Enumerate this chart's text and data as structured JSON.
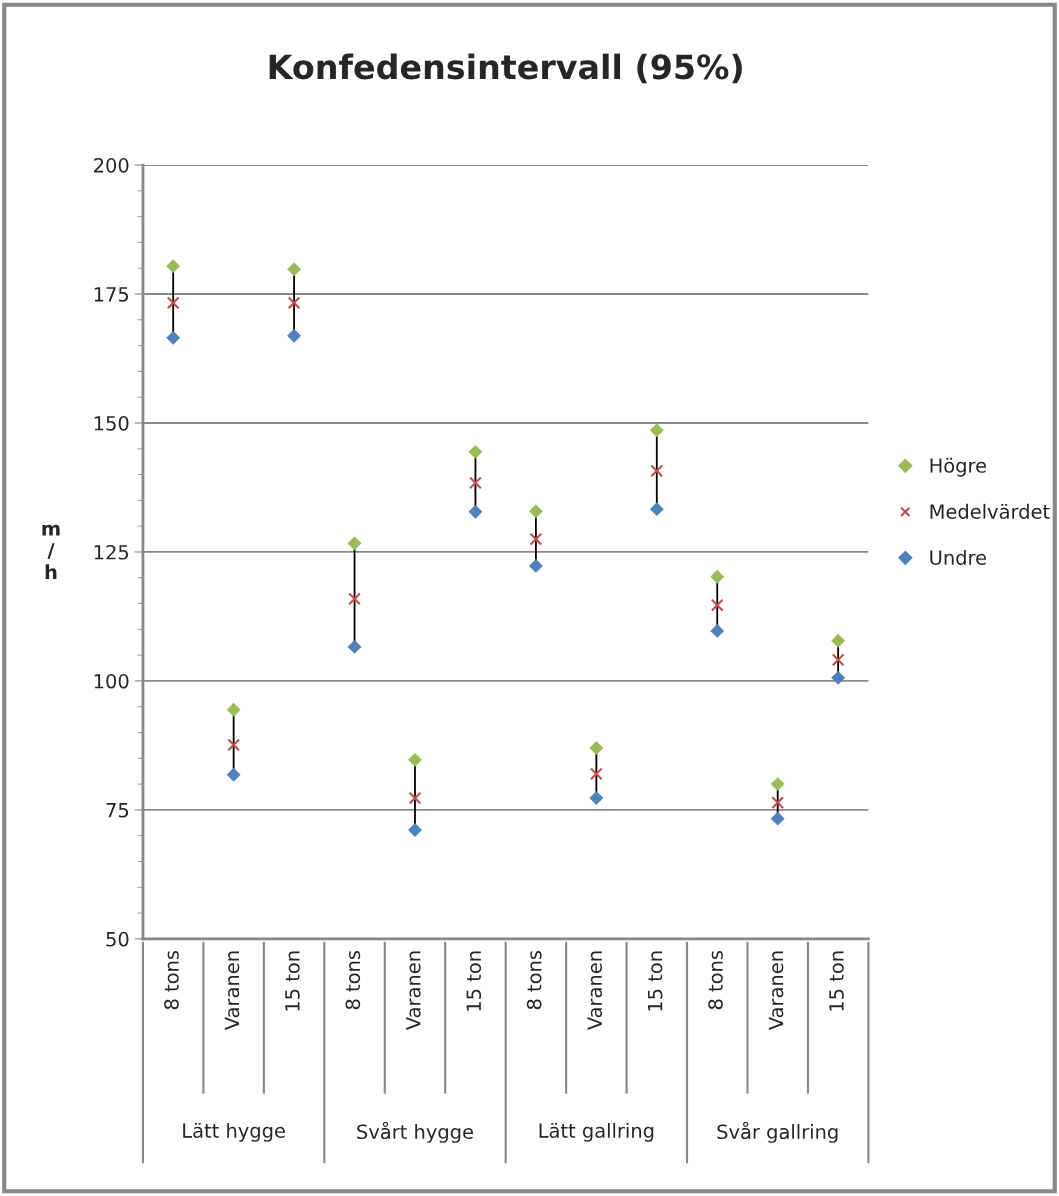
{
  "chart_data": {
    "type": "scatter",
    "title": "Konfedensintervall (95%)",
    "ylabel": "m\n/\nh",
    "categories": [
      "8 tons",
      "Varanen",
      "15 ton",
      "8 tons",
      "Varanen",
      "15 ton",
      "8 tons",
      "Varanen",
      "15 ton",
      "8 tons",
      "Varanen",
      "15 ton"
    ],
    "annotations": [
      "Lätt hygge",
      "Svårt hygge",
      "Lätt gallring",
      "Svår gallring"
    ],
    "series": [
      {
        "name": "Högre",
        "color": "#9bbb59",
        "marker": "diamond",
        "values": [
          180.4,
          94.4,
          179.8,
          126.7,
          84.7,
          144.4,
          132.9,
          87.0,
          148.6,
          120.2,
          80.0,
          107.8
        ]
      },
      {
        "name": "Medelvärdet",
        "color": "#c0504d",
        "marker": "cross",
        "values": [
          173.3,
          87.6,
          173.3,
          115.9,
          77.3,
          138.4,
          127.5,
          82.0,
          140.7,
          114.7,
          76.4,
          104.1
        ]
      },
      {
        "name": "Undre",
        "color": "#4f81bd",
        "marker": "diamond",
        "values": [
          166.5,
          81.8,
          166.9,
          106.6,
          71.1,
          132.8,
          122.3,
          77.3,
          133.3,
          109.7,
          73.3,
          100.6
        ]
      }
    ],
    "ylim": [
      50,
      200
    ],
    "yticks": [
      50,
      75,
      100,
      125,
      150,
      175,
      200
    ],
    "grid": "y",
    "legend": "right"
  }
}
